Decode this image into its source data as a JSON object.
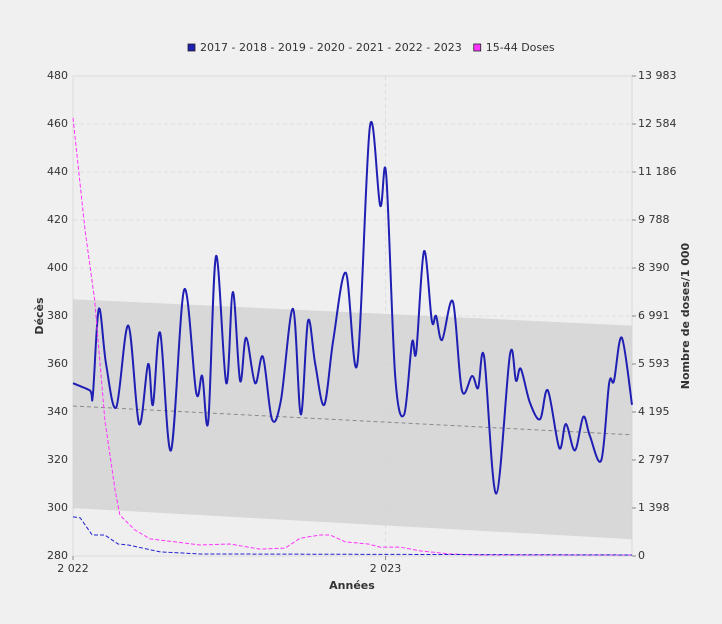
{
  "chart_data": {
    "type": "line",
    "xlabel": "Années",
    "ylabel": "Décès",
    "y2label": "Nombre de doses/1 000",
    "legend": "top",
    "grid": true,
    "xlim": [
      0,
      93
    ],
    "xticks": [
      {
        "value": 0,
        "label": "2 022"
      },
      {
        "value": 52,
        "label": "2 023"
      }
    ],
    "ylim": [
      280,
      480
    ],
    "yticks": [
      280,
      300,
      320,
      340,
      360,
      380,
      400,
      420,
      440,
      460,
      480
    ],
    "y2lim": [
      0,
      13983
    ],
    "y2ticks": [
      0,
      {
        "value": 1398,
        "label": "1 398"
      },
      {
        "value": 2797,
        "label": "2 797"
      },
      {
        "value": 4195,
        "label": "4 195"
      },
      {
        "value": 5593,
        "label": "5 593"
      },
      {
        "value": 6991,
        "label": "6 991"
      },
      {
        "value": 8390,
        "label": "8 390"
      },
      {
        "value": 9788,
        "label": "9 788"
      },
      {
        "value": 11186,
        "label": "11 186"
      },
      {
        "value": 12584,
        "label": "12 584"
      },
      {
        "value": 13983,
        "label": "13 983"
      }
    ],
    "band": {
      "color": "#d3d3d3",
      "x": [
        0,
        93
      ],
      "upper": [
        387,
        376
      ],
      "lower": [
        300,
        287
      ]
    },
    "baseline": {
      "color": "#8a8a8a",
      "x": [
        0,
        93
      ],
      "values": [
        342.5,
        330.5
      ]
    },
    "series": [
      {
        "name": "2017 - 2018 - 2019 - 2020 - 2021 - 2022 - 2023",
        "color": "#1f1fb4",
        "axis": "y",
        "x": [
          0,
          2.8,
          3.3,
          4.3,
          5.5,
          7.2,
          9.2,
          11,
          12.5,
          13.3,
          14.5,
          16.3,
          18.5,
          20.5,
          21.5,
          22.5,
          23.8,
          25.5,
          26.6,
          27.8,
          28.8,
          30.3,
          31.6,
          33.1,
          34.6,
          36.6,
          37.9,
          39.1,
          40.3,
          41.8,
          43.3,
          45.4,
          47.3,
          49.4,
          51.1,
          52.1,
          53.6,
          55.1,
          56.4,
          57.1,
          58.4,
          59.7,
          60.4,
          61.4,
          63.2,
          64.7,
          66.4,
          67.4,
          68.4,
          70.4,
          72.7,
          73.7,
          74.5,
          76,
          77.7,
          79,
          80.9,
          82,
          83.5,
          84.9,
          86,
          87.9,
          89.2,
          90,
          91.3,
          93
        ],
        "values": [
          352,
          349,
          347,
          383,
          360,
          342,
          376,
          335,
          360,
          343,
          373,
          324,
          391,
          348,
          355,
          336,
          405,
          352,
          390,
          353,
          371,
          352,
          363,
          337,
          345,
          383,
          339,
          378,
          360,
          343,
          370,
          398,
          360,
          459,
          426,
          439,
          355,
          339,
          369,
          365,
          407,
          378,
          380,
          370,
          386,
          349,
          355,
          350,
          363,
          306,
          364,
          353,
          358,
          344,
          337,
          349,
          325,
          335,
          324,
          338,
          330,
          320,
          352,
          353,
          371,
          343
        ]
      },
      {
        "name": "15-44 Doses",
        "color": "#ff33ff",
        "axis": "y2",
        "dashed": true,
        "x": [
          0,
          2,
          3.6,
          5.3,
          7,
          7.8,
          10.3,
          12.8,
          17,
          21.1,
          26.1,
          31.1,
          35.3,
          37.8,
          41.1,
          42.8,
          45.3,
          49.1,
          51.1,
          54.4,
          57.7,
          62.7,
          67.7,
          93
        ],
        "values": [
          12760,
          9500,
          7460,
          3960,
          1920,
          1190,
          760,
          500,
          410,
          320,
          350,
          200,
          230,
          520,
          610,
          610,
          410,
          350,
          260,
          260,
          150,
          60,
          30,
          30
        ]
      },
      {
        "color": "#2020d0",
        "axis": "y2",
        "dashed": true,
        "x": [
          0,
          1.2,
          3.2,
          5.3,
          7.5,
          9.2,
          14.5,
          21.1,
          93
        ],
        "values": [
          1140,
          1110,
          610,
          610,
          350,
          320,
          120,
          60,
          30
        ]
      }
    ]
  }
}
